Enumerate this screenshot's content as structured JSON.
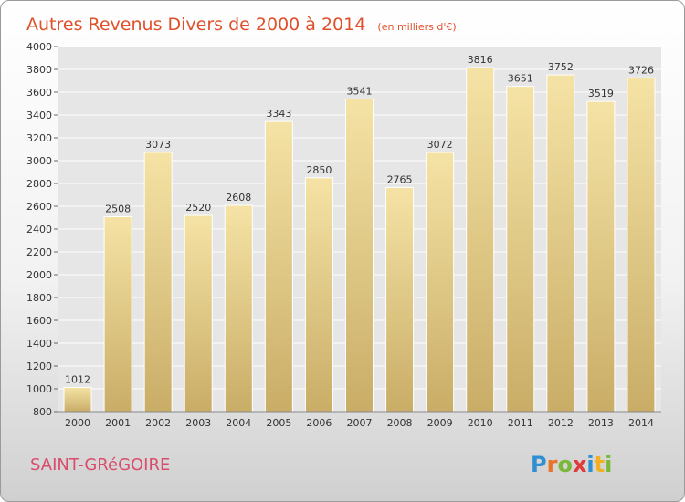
{
  "chart_data": {
    "type": "bar",
    "title": "Autres Revenus Divers de 2000 à 2014",
    "subtitle": "(en milliers d'€)",
    "categories": [
      "2000",
      "2001",
      "2002",
      "2003",
      "2004",
      "2005",
      "2006",
      "2007",
      "2008",
      "2009",
      "2010",
      "2011",
      "2012",
      "2013",
      "2014"
    ],
    "values": [
      1012,
      2508,
      3073,
      2520,
      2608,
      3343,
      2850,
      3541,
      2765,
      3072,
      3816,
      3651,
      3752,
      3519,
      3726
    ],
    "yticks": [
      "800",
      "1000",
      "1200",
      "1400",
      "1600",
      "1800",
      "2000",
      "2200",
      "2400",
      "2600",
      "2800",
      "3000",
      "3200",
      "3400",
      "3600",
      "3800",
      "4000"
    ],
    "ylim": [
      800,
      4000
    ],
    "grid": true,
    "bar_color_top": "#f5e3a5",
    "bar_color_bottom": "#c9ad67",
    "xlabel": "",
    "ylabel": ""
  },
  "footer": {
    "city": "SAINT-GRéGOIRE",
    "logo": "Proxiti"
  }
}
